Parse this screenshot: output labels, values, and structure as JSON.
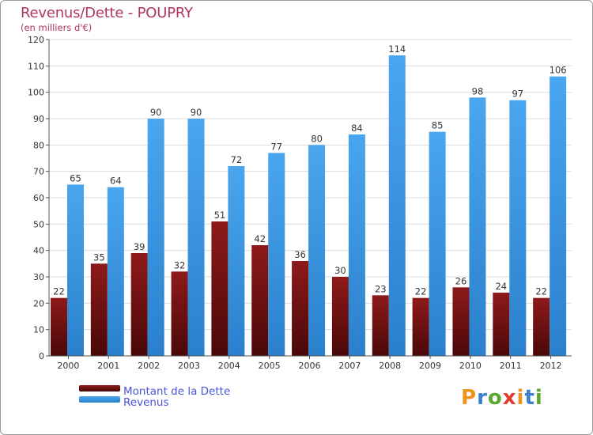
{
  "chart_data": {
    "type": "bar",
    "title": "Revenus/Dette - POUPRY",
    "subtitle": "(en milliers d'€)",
    "xlabel": "",
    "ylabel": "",
    "ylim": [
      0,
      120
    ],
    "yticks": [
      0,
      10,
      20,
      30,
      40,
      50,
      60,
      70,
      80,
      90,
      100,
      110,
      120
    ],
    "grid": true,
    "categories": [
      "2000",
      "2001",
      "2002",
      "2003",
      "2004",
      "2005",
      "2006",
      "2007",
      "2008",
      "2009",
      "2010",
      "2011",
      "2012"
    ],
    "series": [
      {
        "name": "Montant de la Dette",
        "color": "#7a1010",
        "values": [
          22,
          35,
          39,
          32,
          51,
          42,
          36,
          30,
          23,
          22,
          26,
          24,
          22
        ]
      },
      {
        "name": "Revenus",
        "color": "#3f9ae6",
        "values": [
          65,
          64,
          90,
          90,
          72,
          77,
          80,
          84,
          114,
          85,
          98,
          97,
          106
        ]
      }
    ],
    "legend": "bottom-left"
  },
  "legend": {
    "dette_label": "Montant de la Dette",
    "revenus_label": "Revenus",
    "dette_color": "#6e0d0d",
    "revenus_color": "#3f9ae6"
  },
  "logo": {
    "text": "Proxiti",
    "letter_colors": [
      "#f0931c",
      "#3a7fd0",
      "#5aa832",
      "#e23c2f",
      "#f0931c",
      "#3a7fd0",
      "#5aa832"
    ]
  }
}
